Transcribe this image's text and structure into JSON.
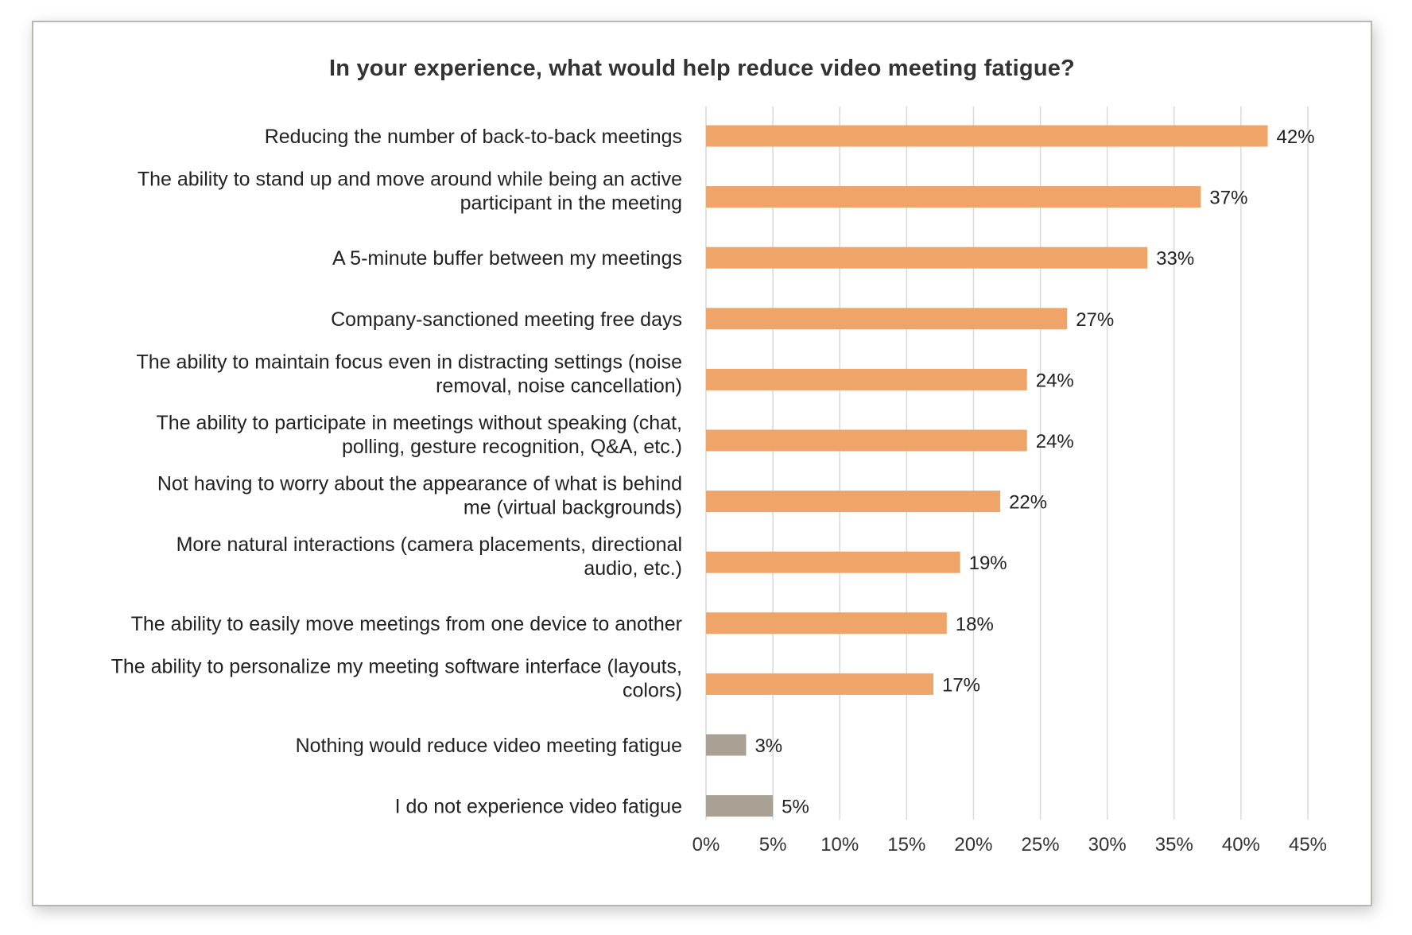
{
  "chart_data": {
    "type": "bar",
    "orientation": "horizontal",
    "title": "In your experience, what would help reduce video meeting fatigue?",
    "xlabel": "",
    "ylabel": "",
    "xlim": [
      0,
      45
    ],
    "x_ticks": [
      0,
      5,
      10,
      15,
      20,
      25,
      30,
      35,
      40,
      45
    ],
    "tick_format": "percent",
    "grid": "vertical",
    "legend": "none",
    "colors": {
      "primary": "#EFA46A",
      "secondary": "#A9A193",
      "grid": "#d9d9d9"
    },
    "categories": [
      [
        "Reducing the number of back-to-back meetings"
      ],
      [
        "The ability to stand up and move around while being an active",
        "participant in the meeting"
      ],
      [
        "A 5-minute buffer between my meetings"
      ],
      [
        "Company-sanctioned meeting free days"
      ],
      [
        "The ability to maintain focus even in distracting settings (noise",
        "removal, noise cancellation)"
      ],
      [
        "The ability to participate in meetings without speaking (chat,",
        "polling, gesture recognition, Q&A, etc.)"
      ],
      [
        "Not having to worry about the appearance of what is behind",
        "me (virtual backgrounds)"
      ],
      [
        "More natural interactions (camera placements, directional",
        "audio, etc.)"
      ],
      [
        "The ability to easily move meetings from one device to another"
      ],
      [
        "The ability to personalize my meeting software interface (layouts,",
        "colors)"
      ],
      [
        "Nothing would reduce video meeting fatigue"
      ],
      [
        "I do not experience video fatigue"
      ]
    ],
    "values": [
      42,
      37,
      33,
      27,
      24,
      24,
      22,
      19,
      18,
      17,
      3,
      5
    ],
    "bar_color_group": [
      "primary",
      "primary",
      "primary",
      "primary",
      "primary",
      "primary",
      "primary",
      "primary",
      "primary",
      "primary",
      "secondary",
      "secondary"
    ]
  }
}
